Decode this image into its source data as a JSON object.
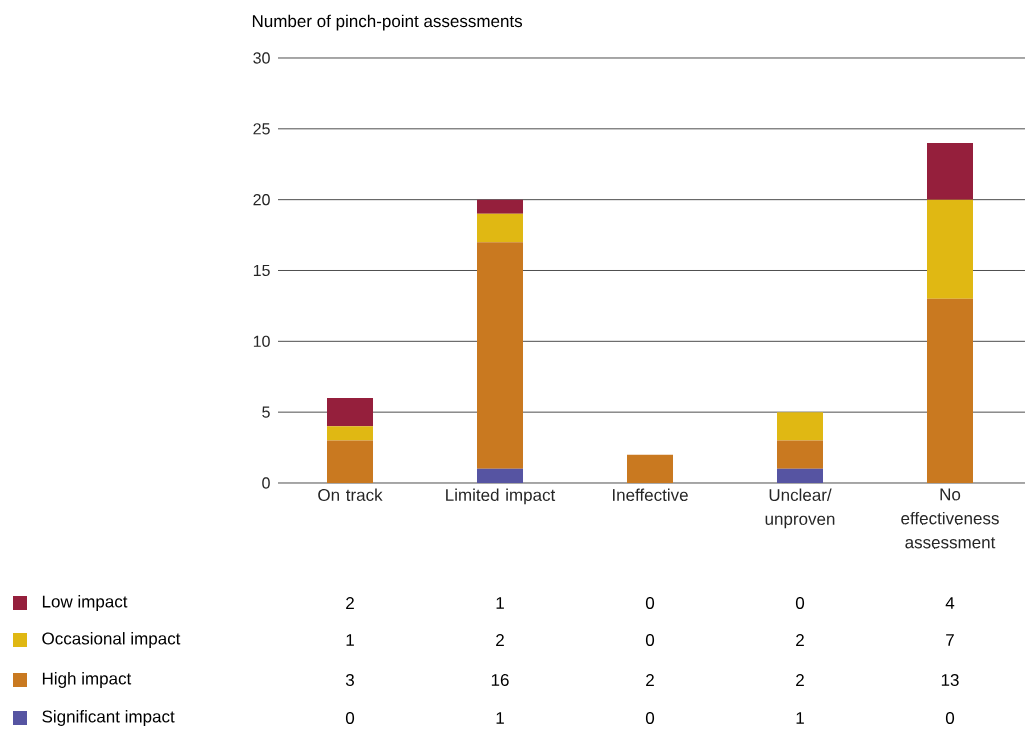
{
  "chart_data": {
    "type": "bar",
    "stacked": true,
    "ylabel": "Number of pinch-point assessments",
    "categories": [
      "On track",
      "Limited impact",
      "Ineffective",
      "Unclear/ unproven",
      "No effectiveness assessment"
    ],
    "series": [
      {
        "name": "Significant impact",
        "color": "#5654a2",
        "values": [
          0,
          1,
          0,
          1,
          0
        ]
      },
      {
        "name": "High impact",
        "color": "#c97920",
        "values": [
          3,
          16,
          2,
          2,
          13
        ]
      },
      {
        "name": "Occasional impact",
        "color": "#e0b813",
        "values": [
          1,
          2,
          0,
          2,
          7
        ]
      },
      {
        "name": "Low impact",
        "color": "#951f3c",
        "values": [
          2,
          1,
          0,
          0,
          4
        ]
      }
    ],
    "ylim": [
      0,
      30
    ],
    "yticks": [
      0,
      5,
      10,
      15,
      20,
      25,
      30
    ],
    "grid": "y",
    "legend": "bottom",
    "data_labels": true
  }
}
